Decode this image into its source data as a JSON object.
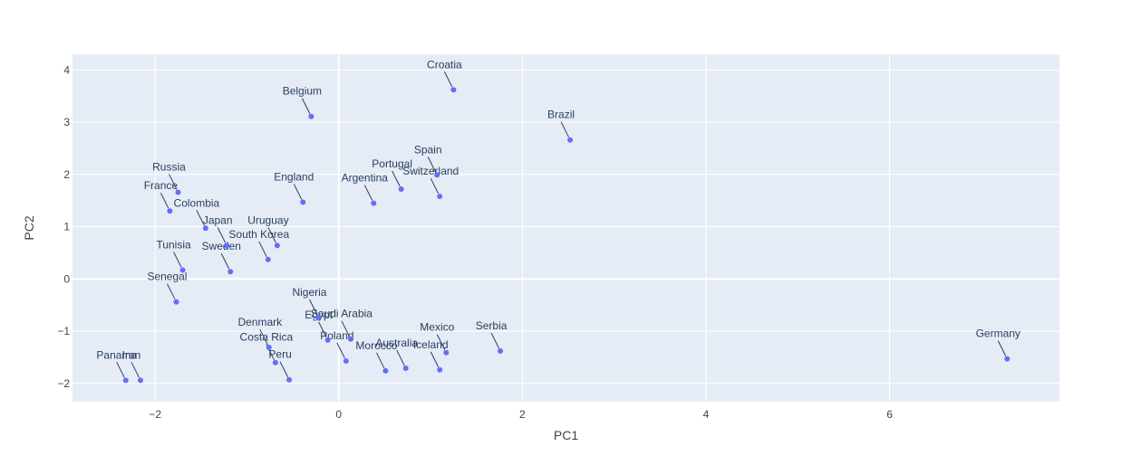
{
  "chart_data": {
    "type": "scatter",
    "xlabel": "PC1",
    "ylabel": "PC2",
    "xlim": [
      -2.9,
      7.85
    ],
    "ylim": [
      -2.35,
      4.3
    ],
    "xticks": [
      -2,
      0,
      2,
      4,
      6
    ],
    "yticks": [
      -2,
      -1,
      0,
      1,
      2,
      3,
      4
    ],
    "grid": true,
    "colors": {
      "background": "#E5ECF6",
      "grid": "#ffffff",
      "marker": "#636EFA",
      "text": "#2a3f5f"
    },
    "points": [
      {
        "label": "Croatia",
        "x": 1.25,
        "y": 3.62
      },
      {
        "label": "Belgium",
        "x": -0.3,
        "y": 3.11
      },
      {
        "label": "Brazil",
        "x": 2.52,
        "y": 2.66
      },
      {
        "label": "Spain",
        "x": 1.07,
        "y": 1.99
      },
      {
        "label": "Russia",
        "x": -1.75,
        "y": 1.66
      },
      {
        "label": "Portugal",
        "x": 0.68,
        "y": 1.72
      },
      {
        "label": "Switzerland",
        "x": 1.1,
        "y": 1.58
      },
      {
        "label": "England",
        "x": -0.39,
        "y": 1.47
      },
      {
        "label": "Argentina",
        "x": 0.38,
        "y": 1.45
      },
      {
        "label": "France",
        "x": -1.84,
        "y": 1.3
      },
      {
        "label": "Colombia",
        "x": -1.45,
        "y": 0.97
      },
      {
        "label": "Japan",
        "x": -1.22,
        "y": 0.64
      },
      {
        "label": "Uruguay",
        "x": -0.67,
        "y": 0.64
      },
      {
        "label": "South Korea",
        "x": -0.77,
        "y": 0.37
      },
      {
        "label": "Tunisia",
        "x": -1.7,
        "y": 0.17
      },
      {
        "label": "Sweden",
        "x": -1.18,
        "y": 0.14
      },
      {
        "label": "Senegal",
        "x": -1.77,
        "y": -0.44
      },
      {
        "label": "Nigeria",
        "x": -0.22,
        "y": -0.74
      },
      {
        "label": "Egypt",
        "x": -0.12,
        "y": -1.17
      },
      {
        "label": "Saudi Arabia",
        "x": 0.13,
        "y": -1.15
      },
      {
        "label": "Denmark",
        "x": -0.76,
        "y": -1.31
      },
      {
        "label": "Poland",
        "x": 0.08,
        "y": -1.57
      },
      {
        "label": "Mexico",
        "x": 1.17,
        "y": -1.41
      },
      {
        "label": "Serbia",
        "x": 1.76,
        "y": -1.38
      },
      {
        "label": "Costa Rica",
        "x": -0.69,
        "y": -1.6
      },
      {
        "label": "Morocco",
        "x": 0.51,
        "y": -1.76
      },
      {
        "label": "Australia",
        "x": 0.73,
        "y": -1.71
      },
      {
        "label": "Iceland",
        "x": 1.1,
        "y": -1.74
      },
      {
        "label": "Peru",
        "x": -0.54,
        "y": -1.93
      },
      {
        "label": "Panama",
        "x": -2.32,
        "y": -1.94
      },
      {
        "label": "Iran",
        "x": -2.16,
        "y": -1.94
      },
      {
        "label": "Germany",
        "x": 7.28,
        "y": -1.53
      }
    ]
  }
}
